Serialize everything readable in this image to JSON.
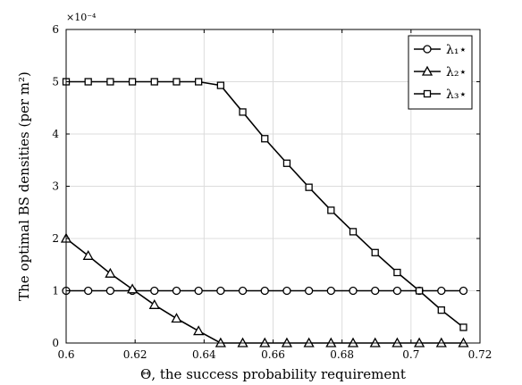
{
  "chart_data": {
    "type": "line",
    "xlabel": "Θ, the success probability requirement",
    "ylabel": "The optimal BS densities (per m²)",
    "scale_label": "×10⁻⁴",
    "xlim": [
      0.6,
      0.72
    ],
    "ylim": [
      0,
      6
    ],
    "xticks": [
      "0.6",
      "0.62",
      "0.64",
      "0.66",
      "0.68",
      "0.7",
      "0.72"
    ],
    "yticks": [
      "0",
      "1",
      "2",
      "3",
      "4",
      "5",
      "6"
    ],
    "grid": true,
    "legend_position": "top-right",
    "colors": {
      "line": "#000000",
      "grid": "#dcdcdc",
      "axis": "#000000"
    },
    "x": [
      0.6,
      0.6064,
      0.6128,
      0.6192,
      0.6256,
      0.632,
      0.6384,
      0.6448,
      0.6512,
      0.6576,
      0.664,
      0.6704,
      0.6768,
      0.6832,
      0.6896,
      0.696,
      0.7024,
      0.7088,
      0.7152
    ],
    "series": [
      {
        "name": "λ₁⋆",
        "marker": "circle",
        "values": [
          1,
          1,
          1,
          1,
          1,
          1,
          1,
          1,
          1,
          1,
          1,
          1,
          1,
          1,
          1,
          1,
          1,
          1,
          1
        ]
      },
      {
        "name": "λ₂⋆",
        "marker": "triangle",
        "values": [
          2.0,
          1.67,
          1.33,
          1.03,
          0.73,
          0.47,
          0.23,
          0,
          0,
          0,
          0,
          0,
          0,
          0,
          0,
          0,
          0,
          0,
          0
        ]
      },
      {
        "name": "λ₃⋆",
        "marker": "square",
        "values": [
          5,
          5,
          5,
          5,
          5,
          5,
          5,
          4.93,
          4.42,
          3.91,
          3.44,
          2.98,
          2.54,
          2.13,
          1.73,
          1.35,
          1.0,
          0.63,
          0.3
        ]
      }
    ]
  }
}
